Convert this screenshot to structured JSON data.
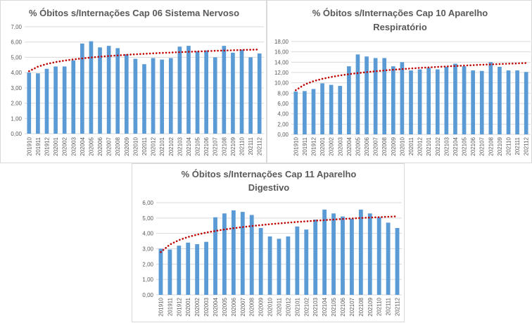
{
  "colors": {
    "bar": "#5b9bd5",
    "trend": "#c00000",
    "grid": "#d9d9d9",
    "axis_text": "#595959",
    "title_text": "#595959"
  },
  "chart_data": [
    {
      "type": "bar",
      "title_lines": [
        "% Óbitos s/Internações Cap 06 Sistema Nervoso"
      ],
      "xlabel": "",
      "ylabel": "",
      "ylim": [
        0,
        7
      ],
      "yticks": [
        "0,00",
        "1,00",
        "2,00",
        "3,00",
        "4,00",
        "5,00",
        "6,00",
        "7,00"
      ],
      "grid": true,
      "trendline": "logarithmic, dotted",
      "categories": [
        "201910",
        "201911",
        "201912",
        "202001",
        "202002",
        "202003",
        "202004",
        "202005",
        "202006",
        "202007",
        "202008",
        "202009",
        "202010",
        "202011",
        "202012",
        "202101",
        "202102",
        "202103",
        "202104",
        "202105",
        "202106",
        "202107",
        "202108",
        "202109",
        "202110",
        "202111",
        "202112"
      ],
      "values": [
        4.0,
        3.95,
        4.25,
        4.4,
        4.4,
        4.8,
        5.9,
        6.05,
        5.65,
        5.75,
        5.6,
        5.2,
        4.9,
        4.55,
        4.95,
        4.85,
        4.95,
        5.7,
        5.75,
        5.4,
        5.45,
        5.0,
        5.75,
        5.3,
        5.5,
        5.0,
        5.25
      ]
    },
    {
      "type": "bar",
      "title_lines": [
        "% Óbitos s/Internações Cap 10 Aparelho",
        "Respiratório"
      ],
      "xlabel": "",
      "ylabel": "",
      "ylim": [
        0,
        18
      ],
      "yticks": [
        "0,00",
        "2,00",
        "4,00",
        "6,00",
        "8,00",
        "10,00",
        "12,00",
        "14,00",
        "16,00",
        "18,00"
      ],
      "grid": true,
      "trendline": "logarithmic, dotted",
      "categories": [
        "201910",
        "201911",
        "201912",
        "202001",
        "202002",
        "202003",
        "202004",
        "202005",
        "202006",
        "202007",
        "202008",
        "202009",
        "202010",
        "202011",
        "202012",
        "202101",
        "202102",
        "202103",
        "202104",
        "202105",
        "202106",
        "202107",
        "202108",
        "202109",
        "202110",
        "202111",
        "202112"
      ],
      "values": [
        8.3,
        8.4,
        8.8,
        9.9,
        9.6,
        9.4,
        13.2,
        15.5,
        15.1,
        14.8,
        14.8,
        13.2,
        14.0,
        12.4,
        12.6,
        12.9,
        12.6,
        13.1,
        13.7,
        13.2,
        12.4,
        12.3,
        14.0,
        13.1,
        12.4,
        12.4,
        12.1
      ]
    },
    {
      "type": "bar",
      "title_lines": [
        "% Óbitos s/Internações Cap 11 Aparelho",
        "Digestivo"
      ],
      "xlabel": "",
      "ylabel": "",
      "ylim": [
        0,
        6
      ],
      "yticks": [
        "0,00",
        "1,00",
        "2,00",
        "3,00",
        "4,00",
        "5,00",
        "6,00"
      ],
      "grid": true,
      "trendline": "logarithmic, dotted",
      "categories": [
        "201910",
        "201911",
        "201912",
        "202001",
        "202002",
        "202003",
        "202004",
        "202005",
        "202006",
        "202007",
        "202008",
        "202009",
        "202010",
        "202011",
        "202012",
        "202101",
        "202102",
        "202103",
        "202104",
        "202105",
        "202106",
        "202107",
        "202108",
        "202109",
        "202110",
        "202111",
        "202112"
      ],
      "values": [
        3.0,
        2.95,
        3.2,
        3.4,
        3.3,
        3.45,
        5.05,
        5.3,
        5.5,
        5.4,
        5.2,
        4.35,
        3.8,
        3.65,
        3.8,
        4.45,
        4.25,
        4.9,
        5.55,
        5.3,
        5.1,
        4.95,
        5.55,
        5.3,
        5.05,
        4.7,
        4.35
      ]
    }
  ]
}
